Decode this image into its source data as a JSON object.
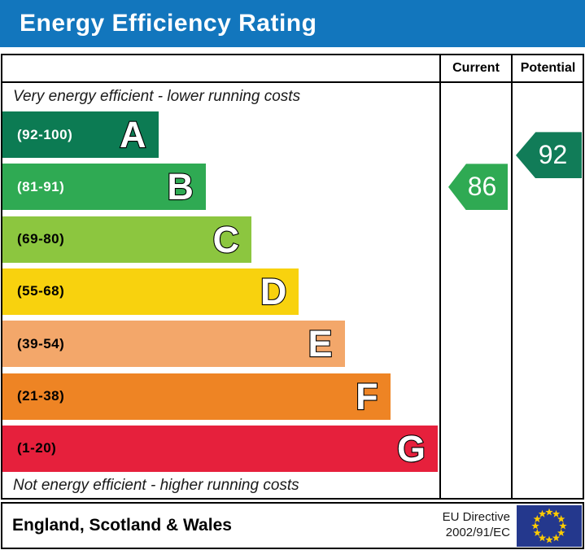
{
  "title": "Energy Efficiency Rating",
  "colors": {
    "title_bar_bg": "#1276bd",
    "title_text": "#ffffff",
    "border": "#000000",
    "eu_flag_bg": "#24388d",
    "eu_star": "#ffcc00"
  },
  "table": {
    "current_header": "Current",
    "potential_header": "Potential",
    "top_note": "Very energy efficient - lower running costs",
    "bottom_note": "Not energy efficient - higher running costs"
  },
  "footer": {
    "region": "England, Scotland & Wales",
    "directive_line1": "EU Directive",
    "directive_line2": "2002/91/EC",
    "flag_icon": "eu-flag-icon"
  },
  "chart_data": {
    "type": "bar",
    "title": "Energy Efficiency Rating",
    "xlabel": "",
    "ylabel": "",
    "legend": [
      "Current",
      "Potential"
    ],
    "bands": [
      {
        "letter": "A",
        "label": "(92-100)",
        "min": 92,
        "max": 100,
        "color": "#0c7b53",
        "label_color": "#ffffff",
        "width_pct": 35.8
      },
      {
        "letter": "B",
        "label": "(81-91)",
        "min": 81,
        "max": 91,
        "color": "#2faa53",
        "label_color": "#ffffff",
        "width_pct": 46.7
      },
      {
        "letter": "C",
        "label": "(69-80)",
        "min": 69,
        "max": 80,
        "color": "#8cc63f",
        "label_color": "#000000",
        "width_pct": 57.2
      },
      {
        "letter": "D",
        "label": "(55-68)",
        "min": 55,
        "max": 68,
        "color": "#f8d20e",
        "label_color": "#000000",
        "width_pct": 68.1
      },
      {
        "letter": "E",
        "label": "(39-54)",
        "min": 39,
        "max": 54,
        "color": "#f3a76a",
        "label_color": "#000000",
        "width_pct": 78.6
      },
      {
        "letter": "F",
        "label": "(21-38)",
        "min": 21,
        "max": 38,
        "color": "#ee8424",
        "label_color": "#000000",
        "width_pct": 89.1
      },
      {
        "letter": "G",
        "label": "(1-20)",
        "min": 1,
        "max": 20,
        "color": "#e6203c",
        "label_color": "#000000",
        "width_pct": 100
      }
    ],
    "current": {
      "value": 86,
      "color": "#2faa53"
    },
    "potential": {
      "value": 92,
      "color": "#117c58"
    }
  }
}
